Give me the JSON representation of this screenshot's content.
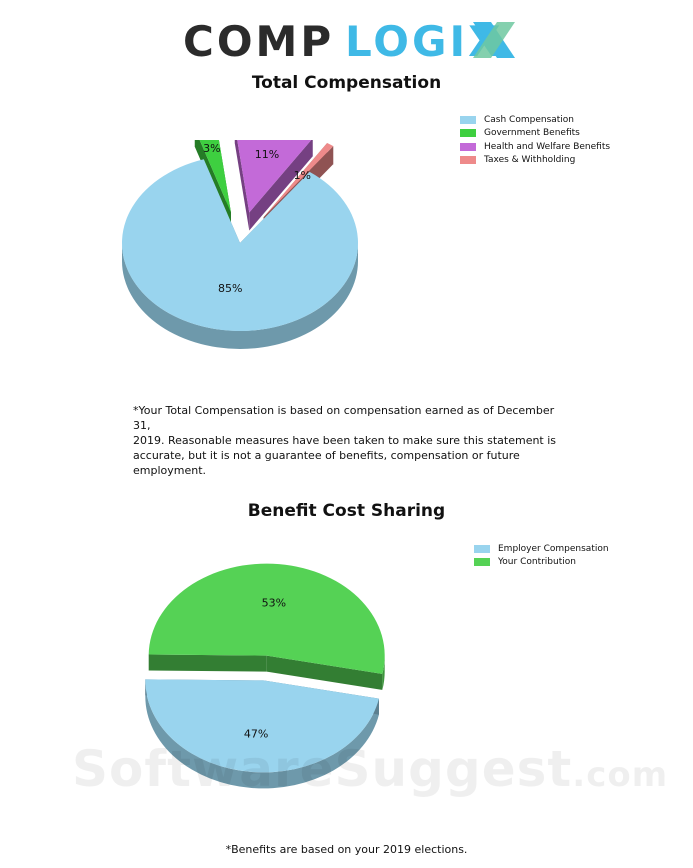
{
  "logo": {
    "text_left": "COMP",
    "text_right": "LOGIX"
  },
  "colors": {
    "cash": "#99d4ee",
    "government": "#3ecf40",
    "health": "#c36ad8",
    "taxes": "#ee8a8a",
    "employer": "#99d4ee",
    "contribution": "#55d255"
  },
  "chart_data": [
    {
      "type": "pie",
      "title": "Total Compensation",
      "legend_position": "top-right",
      "slices": [
        {
          "label": "Cash Compensation",
          "value": 85,
          "display": "85%"
        },
        {
          "label": "Government Benefits",
          "value": 3,
          "display": "3%"
        },
        {
          "label": "Health and Welfare Benefits",
          "value": 11,
          "display": "11%"
        },
        {
          "label": "Taxes & Withholding",
          "value": 1,
          "display": "1%"
        }
      ]
    },
    {
      "type": "pie",
      "title": "Benefit Cost Sharing",
      "legend_position": "top-right",
      "slices": [
        {
          "label": "Employer Compensation",
          "value": 47,
          "display": "47%"
        },
        {
          "label": "Your Contribution",
          "value": 53,
          "display": "53%"
        }
      ]
    }
  ],
  "notes": {
    "total_comp_lines": [
      "*Your Total Compensation is based on compensation earned as of December 31,",
      "2019. Reasonable measures have been taken to make sure this statement is",
      "accurate, but it is not a guarantee of benefits, compensation or future",
      "employment."
    ],
    "benefits": "*Benefits are based on your 2019 elections."
  },
  "watermark": {
    "main": "SoftwareSuggest",
    "suffix": ".com"
  }
}
